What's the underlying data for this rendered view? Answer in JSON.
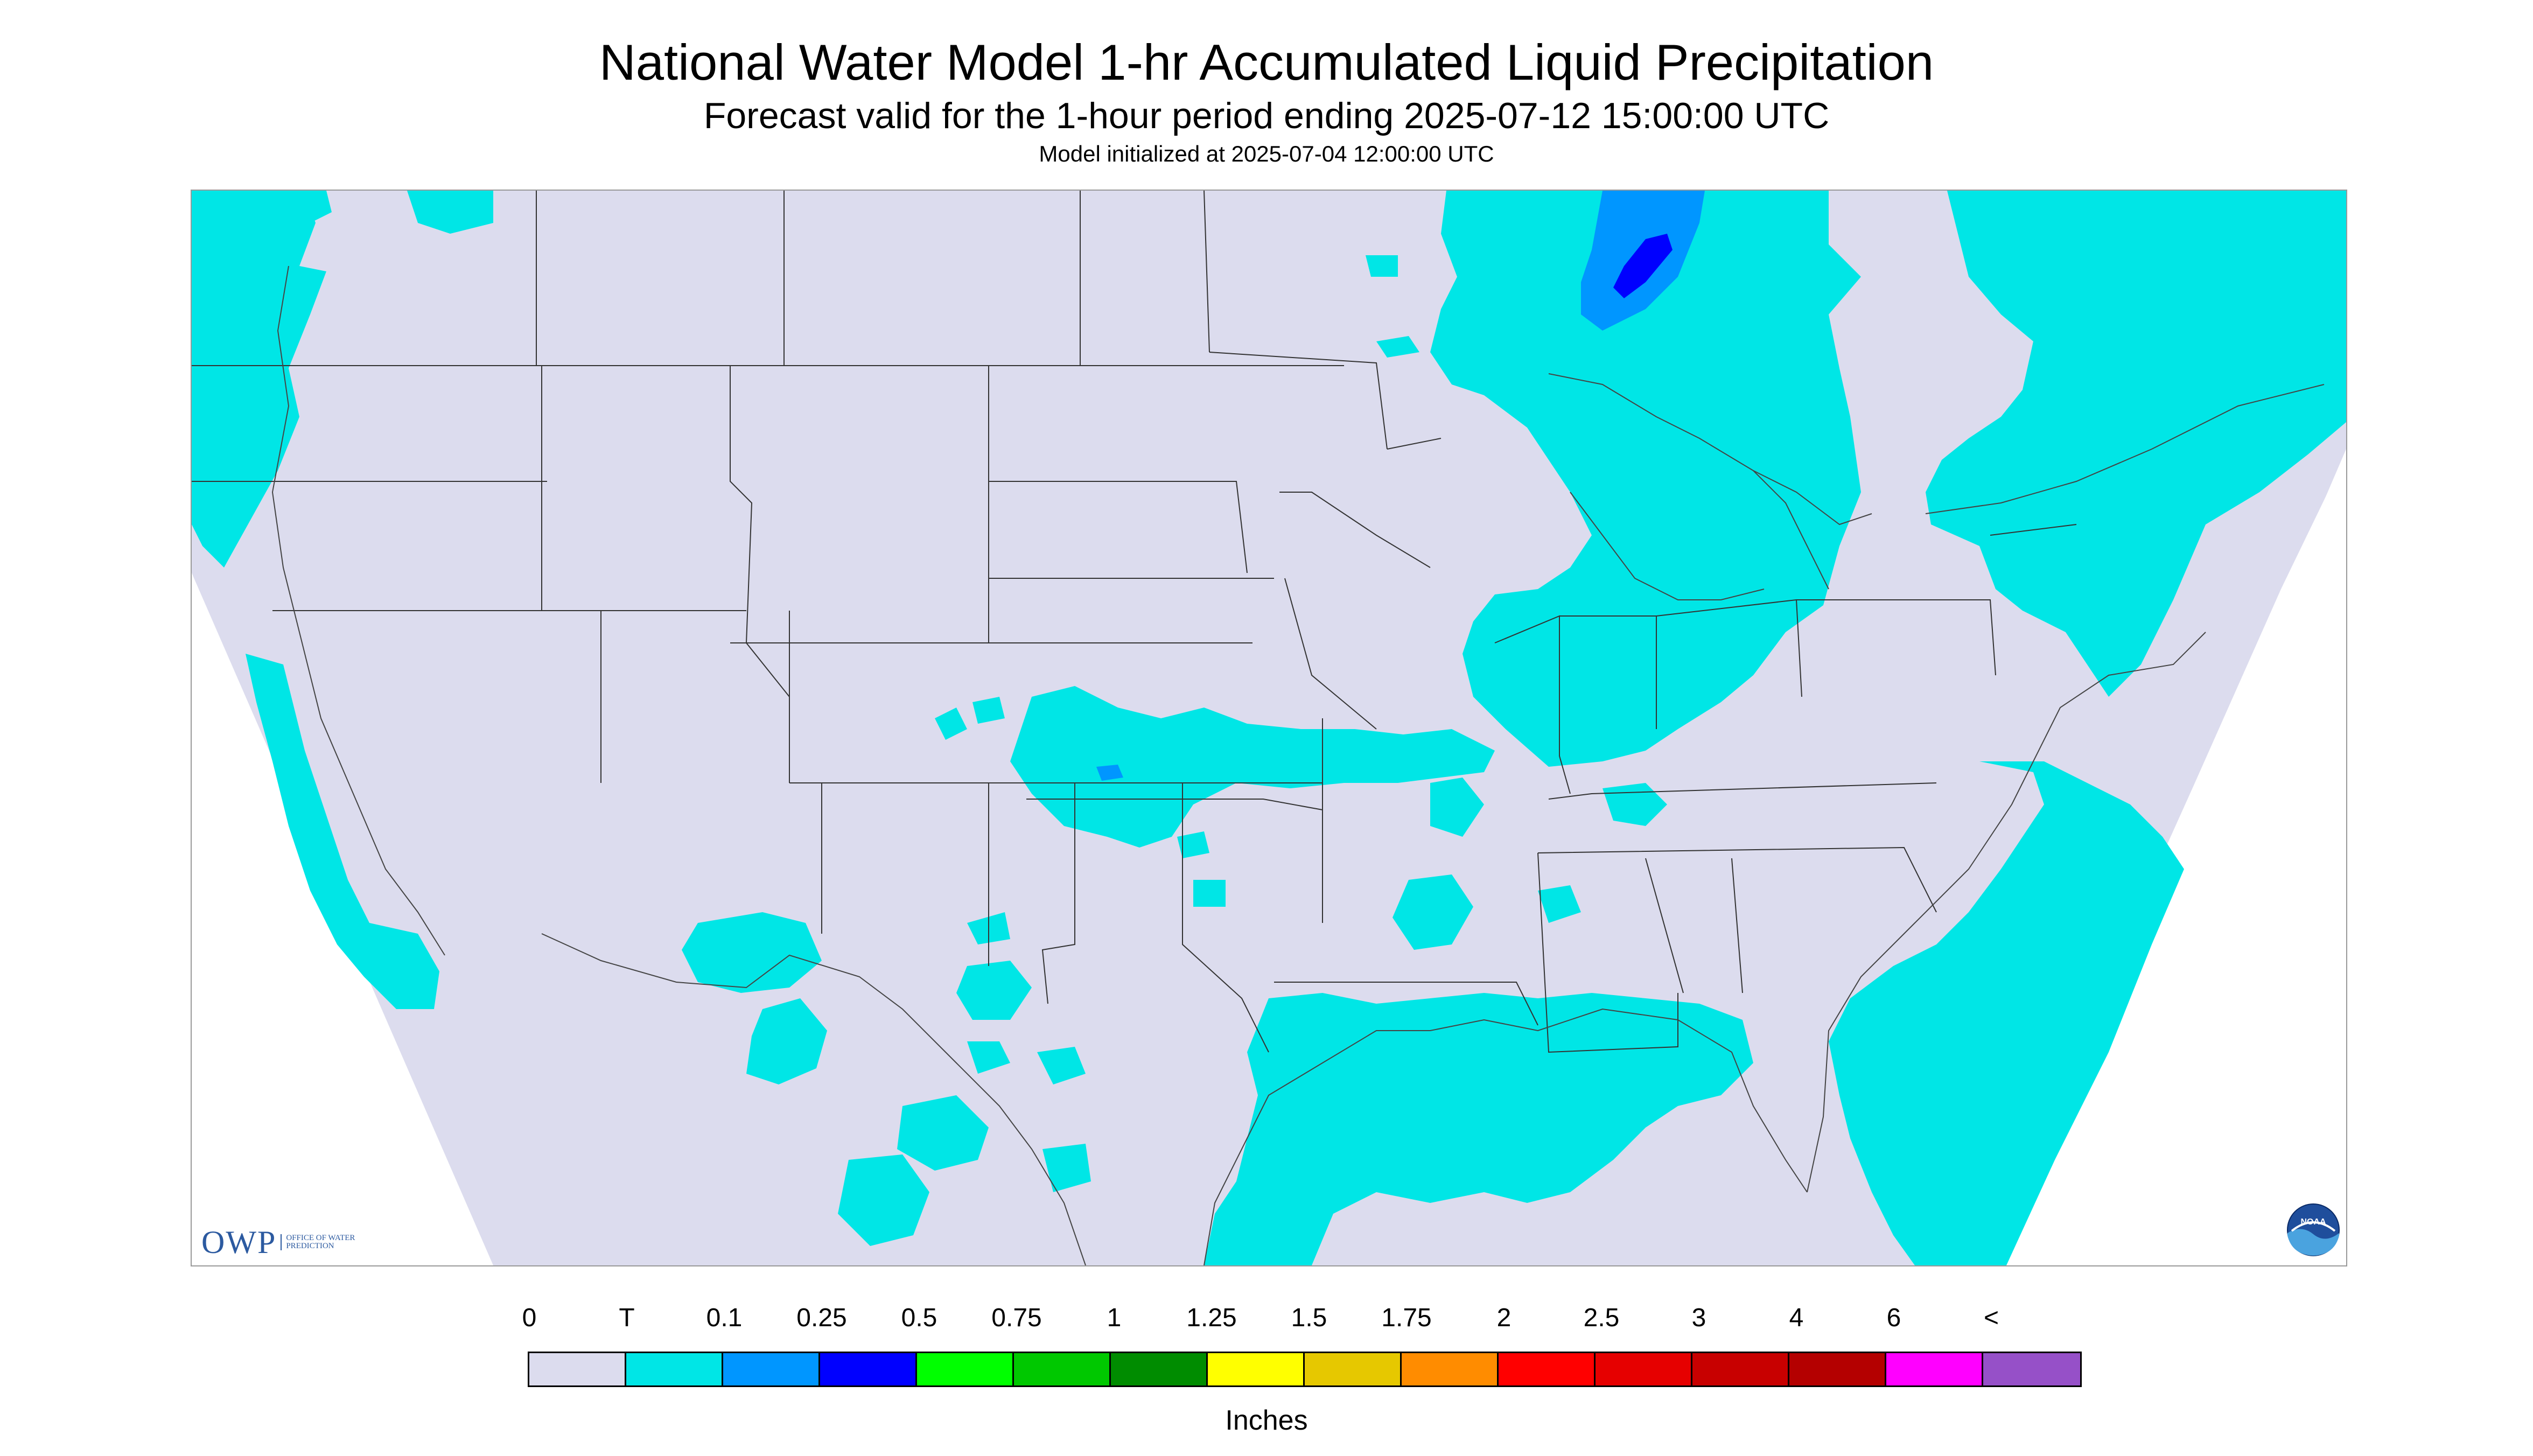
{
  "title": "National Water Model 1-hr Accumulated Liquid Precipitation",
  "subtitle": "Forecast valid for the 1-hour period ending 2025-07-12 15:00:00 UTC",
  "init_line": "Model initialized at 2025-07-04 12:00:00 UTC",
  "logo": {
    "text": "OWP",
    "sub": "Office of Water Prediction"
  },
  "noaa_logo_text": "NOAA",
  "legend": {
    "ticks": [
      "0",
      "T",
      "0.1",
      "0.25",
      "0.5",
      "0.75",
      "1",
      "1.25",
      "1.5",
      "1.75",
      "2",
      "2.5",
      "3",
      "4",
      "6",
      "<"
    ],
    "colors": [
      "#dcdcee",
      "#00e6e6",
      "#0096ff",
      "#0000ff",
      "#00ff00",
      "#00c800",
      "#008c00",
      "#ffff00",
      "#e6c800",
      "#ff8c00",
      "#ff0000",
      "#e60000",
      "#c80000",
      "#b40000",
      "#ff00ff",
      "#9650c8"
    ],
    "units": "Inches"
  },
  "colors": {
    "no_precip": "#dcdcee",
    "trace": "#00e6e6",
    "light": "#0096ff",
    "moderate": "#0000ff",
    "boundary": "#333333"
  }
}
